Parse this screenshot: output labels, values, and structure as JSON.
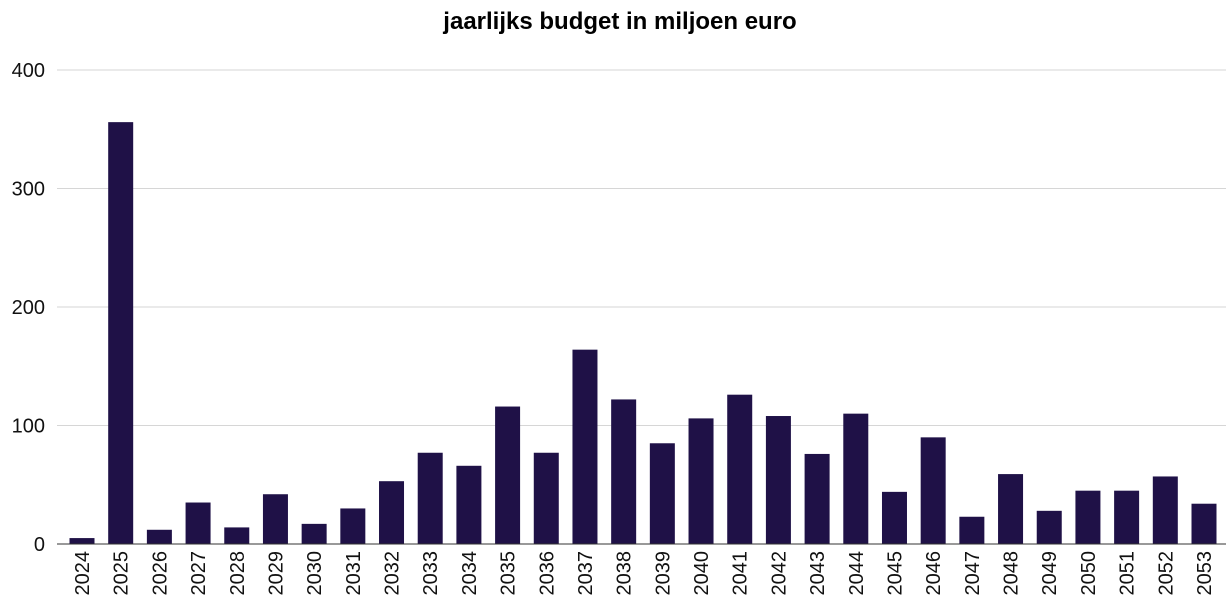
{
  "chart_data": {
    "type": "bar",
    "title": "jaarlijks budget in miljoen euro",
    "xlabel": "",
    "ylabel": "",
    "ylim": [
      0,
      400
    ],
    "yticks": [
      0,
      100,
      200,
      300,
      400
    ],
    "grid": true,
    "bar_color": "#1f1147",
    "categories": [
      "2024",
      "2025",
      "2026",
      "2027",
      "2028",
      "2029",
      "2030",
      "2031",
      "2032",
      "2033",
      "2034",
      "2035",
      "2036",
      "2037",
      "2038",
      "2039",
      "2040",
      "2041",
      "2042",
      "2043",
      "2044",
      "2045",
      "2046",
      "2047",
      "2048",
      "2049",
      "2050",
      "2051",
      "2052",
      "2053"
    ],
    "values": [
      5,
      356,
      12,
      35,
      14,
      42,
      17,
      30,
      53,
      77,
      66,
      116,
      77,
      164,
      122,
      85,
      106,
      126,
      108,
      76,
      110,
      44,
      90,
      23,
      59,
      28,
      45,
      45,
      57,
      34
    ]
  }
}
